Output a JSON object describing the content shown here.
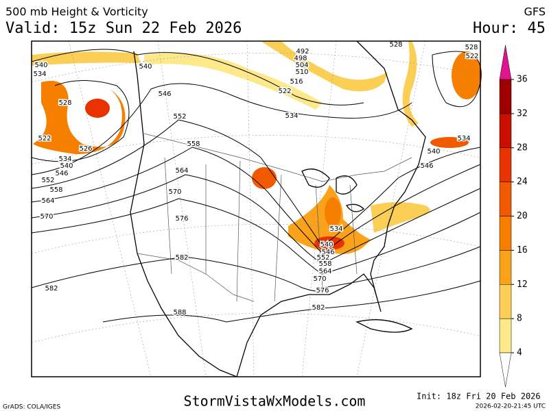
{
  "header": {
    "title": "500 mb Height & Vorticity",
    "valid": "Valid: 15z Sun 22 Feb 2026",
    "model": "GFS",
    "hour": "Hour: 45"
  },
  "colorbar": {
    "ticks": [
      4,
      8,
      12,
      16,
      20,
      24,
      28,
      32,
      36
    ],
    "lim": [
      4,
      36
    ],
    "colors": [
      "#fde98a",
      "#fbcf55",
      "#f9a21a",
      "#f77f00",
      "#f25a00",
      "#e83200",
      "#c80f00",
      "#9e0000"
    ],
    "over_color": "#e0148c"
  },
  "contour_labels": [
    "540",
    "534",
    "528",
    "522",
    "526",
    "534",
    "540",
    "546",
    "552",
    "558",
    "564",
    "570",
    "582",
    "540",
    "546",
    "552",
    "558",
    "564",
    "570",
    "576",
    "582",
    "588",
    "492",
    "498",
    "504",
    "510",
    "516",
    "522",
    "534",
    "528",
    "528",
    "522",
    "534",
    "540",
    "546",
    "534",
    "540",
    "546",
    "552",
    "558",
    "564",
    "570",
    "576",
    "582"
  ],
  "footer": {
    "grads": "GrADS: COLA/IGES",
    "site": "StormVistaWxModels.com",
    "init": "Init: 18z Fri 20 Feb 2026",
    "stamp": "2026-02-20-21:45 UTC"
  }
}
